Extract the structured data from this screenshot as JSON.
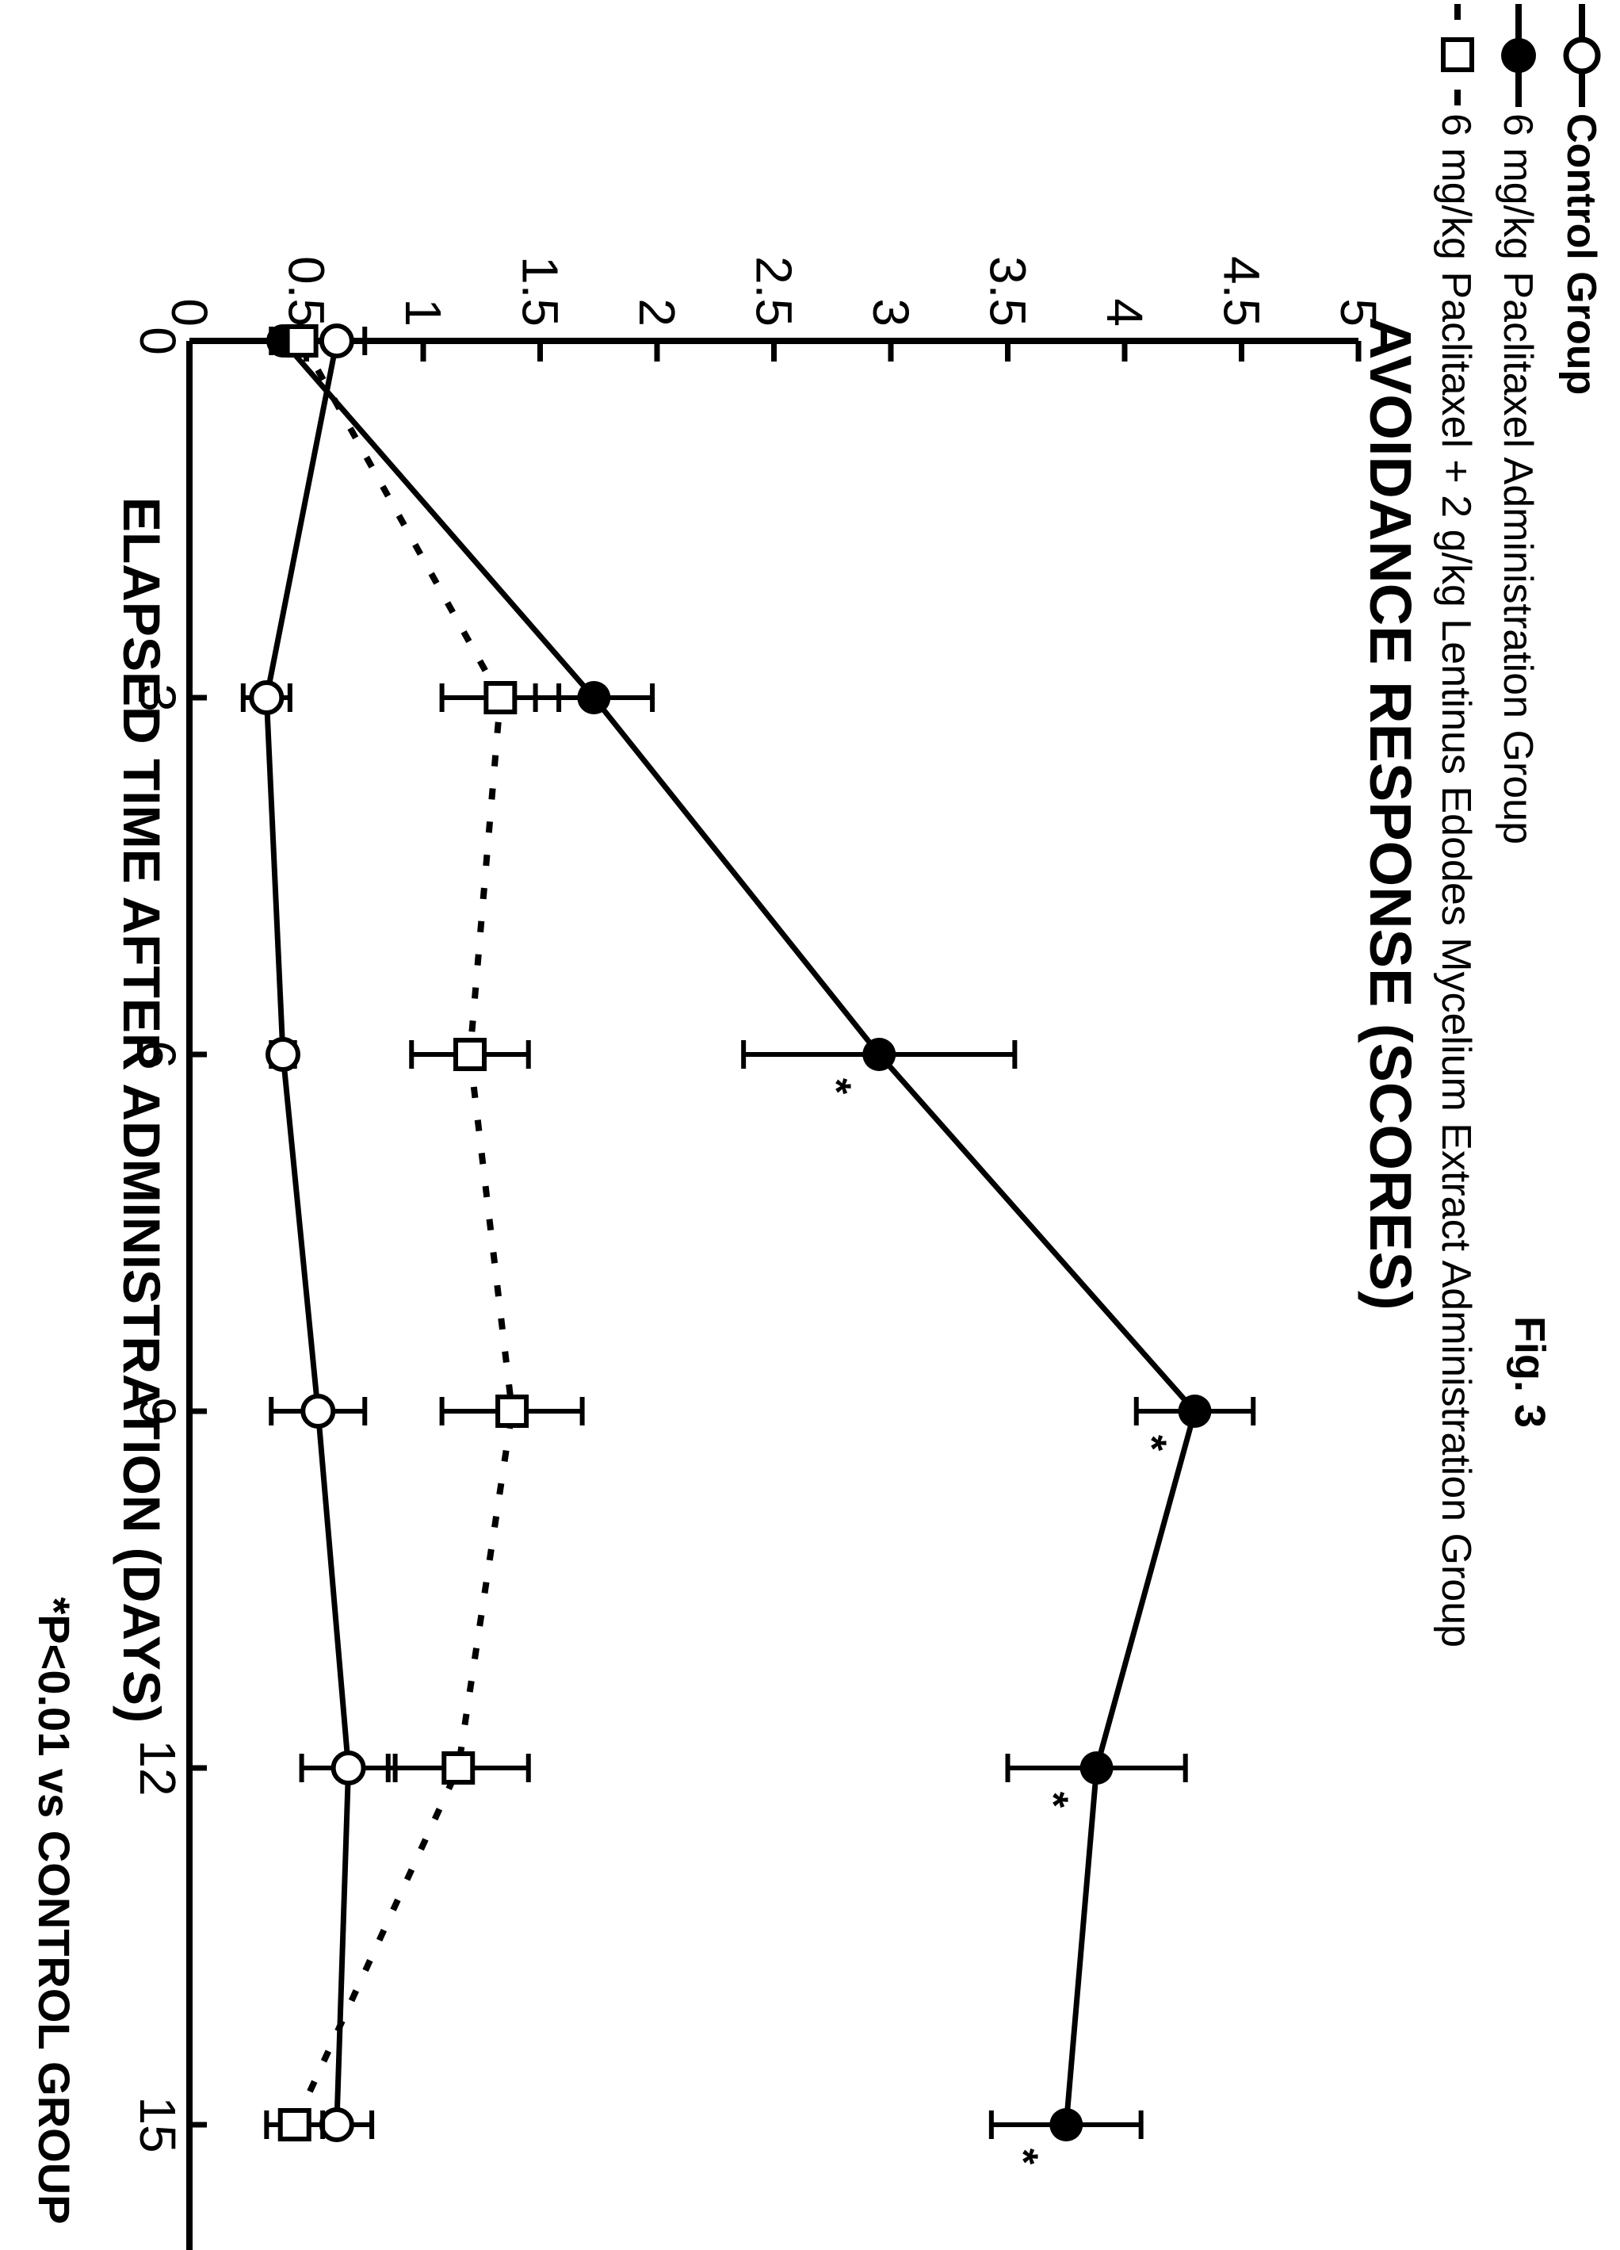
{
  "figure_label": "Fig. 3",
  "footnote": "*P<0.01 vs CONTROL GROUP",
  "chart_data": {
    "type": "line",
    "title": "",
    "xlabel": "ELAPSED TIME AFTER ADMINISTRATION (DAYS)",
    "ylabel": "AVOIDANCE RESPONSE (SCORES)",
    "x": [
      0,
      3,
      6,
      9,
      12,
      15
    ],
    "xticks": [
      "0",
      "3",
      "6",
      "9",
      "12",
      "15"
    ],
    "yticks": [
      "0",
      "0.5",
      "1",
      "1.5",
      "2",
      "2.5",
      "3",
      "3.5",
      "4",
      "4.5",
      "5"
    ],
    "ylim": [
      0,
      5
    ],
    "xlim": [
      0,
      15
    ],
    "grid": false,
    "legend_position": "top",
    "series": [
      {
        "name": "Control Group",
        "marker": "open-circle",
        "line": "solid",
        "values": [
          0.63,
          0.33,
          0.4,
          0.55,
          0.68,
          0.63
        ],
        "errors": [
          0.12,
          0.1,
          0.05,
          0.2,
          0.2,
          0.15
        ],
        "significant": [
          false,
          false,
          false,
          false,
          false,
          false
        ]
      },
      {
        "name": "6 mg/kg Paclitaxel Administration Group",
        "marker": "filled-circle",
        "line": "solid",
        "values": [
          0.4,
          1.73,
          2.95,
          4.3,
          3.88,
          3.75
        ],
        "errors": [
          0.05,
          0.25,
          0.58,
          0.25,
          0.38,
          0.32
        ],
        "significant": [
          false,
          false,
          true,
          true,
          true,
          true
        ]
      },
      {
        "name": "6 mg/kg Paclitaxel + 2 g/kg Lentinus Edodes Mycelium Extract Administration Group",
        "marker": "open-square",
        "line": "dotted",
        "values": [
          0.48,
          1.33,
          1.2,
          1.38,
          1.15,
          0.45
        ],
        "errors": [
          0.05,
          0.25,
          0.25,
          0.3,
          0.3,
          0.12
        ],
        "significant": [
          false,
          false,
          false,
          false,
          false,
          false
        ]
      }
    ],
    "significance_marker": "*"
  }
}
